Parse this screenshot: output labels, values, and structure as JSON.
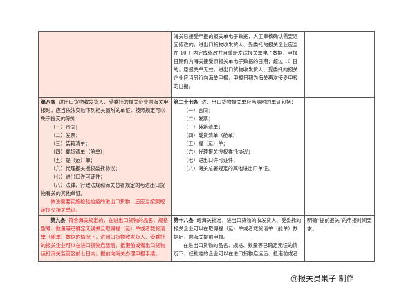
{
  "row1": {
    "new": "海关已接受申报的报关单电子数据，人工审核确认需要退回修改的，进出口货物收发货人、受委托的报关企业应当在 10 日内完成修改并且重新发送报关单电子数据，申报日期仍为海关接受原报关单电子数据的日期；超过 10 日的，原报关单无效，进出口货物收发货人、受委托的报关企业应当另行向海关申报，申报日期为海关再次接受申报的日期。"
  },
  "row2": {
    "old_title": "第八条",
    "old_intro": "进出口货物收发货人、受委托的报关企业向海关申报时，应当依法交验下列相关随附的单证，按照规定可以免于提交的除外：",
    "old_items": [
      "（一）合同；",
      "（二）发票；",
      "（三）装箱清单；",
      "（四）载货清单（舱单）；",
      "（五）提（运）单；",
      "（六）代理报关授权委托协议；",
      "（七）进出口许可证件；",
      "（八）法律、行政法规和海关总署规定的与进出口货物有关的其他单证。"
    ],
    "old_red": "依法需要实施检验检疫的进出口货物，还应当按照规定提交相关单证。",
    "new_title": "第二十七条",
    "new_intro": "进、出口货物报关单应当随附的单证包括：",
    "new_items": [
      "（一）合同；",
      "（二）发票；",
      "（三）装箱清单；",
      "（四）载货清单（舱单）；",
      "（五）提（运）单；",
      "（六）代理报关授权委托协议；",
      "（七）进出口许可证件；",
      "（八）海关总署规定的其他进出口单证。"
    ]
  },
  "row3": {
    "old_title": "第九条",
    "old_text": "符合海关规定的，在进出口货物的品名、规格型号、数量等已确定无误并且取得提（运）单或者载货清单（舱单）数据的情况下，进出口货物收发货人、受委托的报关企业可以在进口货物启运后、抵港前或者出口货物运抵海关监管区前七日内，提前向海关办理申报手续。",
    "new_title": "第十八条",
    "new_text1": "经海关批准，进出口货物的收发货人、受委托的报关企业可以在取得提（运）单或者载货清单（舱单）数据后，向海关提前申报。",
    "new_text2": "在进出口货物的品名、规格、数量等已确定无误的情况下，经批准的企业可以在进口货物启运后、抵港前或者",
    "note": "明确“提前报关”的申报时间要求。"
  },
  "watermark": "@报关员果子 制作"
}
